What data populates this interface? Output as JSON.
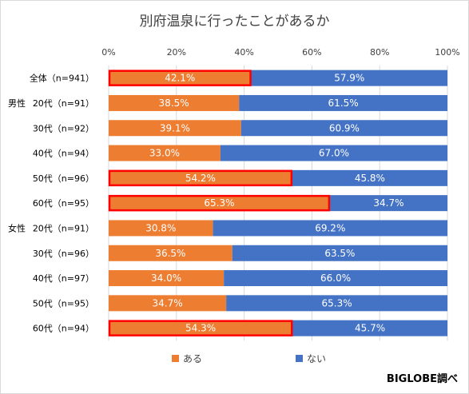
{
  "chart_data": {
    "type": "bar",
    "orientation": "horizontal",
    "stacked": true,
    "percent_stacked": true,
    "title": "別府温泉に行ったことがあるか",
    "xlim": [
      0,
      100
    ],
    "x_ticks": [
      "0%",
      "20%",
      "40%",
      "60%",
      "80%",
      "100%"
    ],
    "grid": true,
    "legend_position": "bottom",
    "groups": [
      "",
      "男性",
      "",
      "",
      "",
      "",
      "女性",
      "",
      "",
      "",
      ""
    ],
    "categories": [
      "全体（n=941）",
      "20代（n=91）",
      "30代（n=92）",
      "40代（n=94）",
      "50代（n=96）",
      "60代（n=95）",
      "20代（n=91）",
      "30代（n=96）",
      "40代（n=97）",
      "50代（n=95）",
      "60代（n=94）"
    ],
    "series": [
      {
        "name": "ある",
        "color": "#ed7d31",
        "values": [
          42.1,
          38.5,
          39.1,
          33.0,
          54.2,
          65.3,
          30.8,
          36.5,
          34.0,
          34.7,
          54.3
        ],
        "labels": [
          "42.1%",
          "38.5%",
          "39.1%",
          "33.0%",
          "54.2%",
          "65.3%",
          "30.8%",
          "36.5%",
          "34.0%",
          "34.7%",
          "54.3%"
        ]
      },
      {
        "name": "ない",
        "color": "#4472c4",
        "values": [
          57.9,
          61.5,
          60.9,
          67.0,
          45.8,
          34.7,
          69.2,
          63.5,
          66.0,
          65.3,
          45.7
        ],
        "labels": [
          "57.9%",
          "61.5%",
          "60.9%",
          "67.0%",
          "45.8%",
          "34.7%",
          "69.2%",
          "63.5%",
          "66.0%",
          "65.3%",
          "45.7%"
        ]
      }
    ],
    "highlighted_rows": [
      0,
      4,
      5,
      10
    ],
    "highlight_color": "#ff0000"
  },
  "source_label": "BIGLOBE調べ"
}
